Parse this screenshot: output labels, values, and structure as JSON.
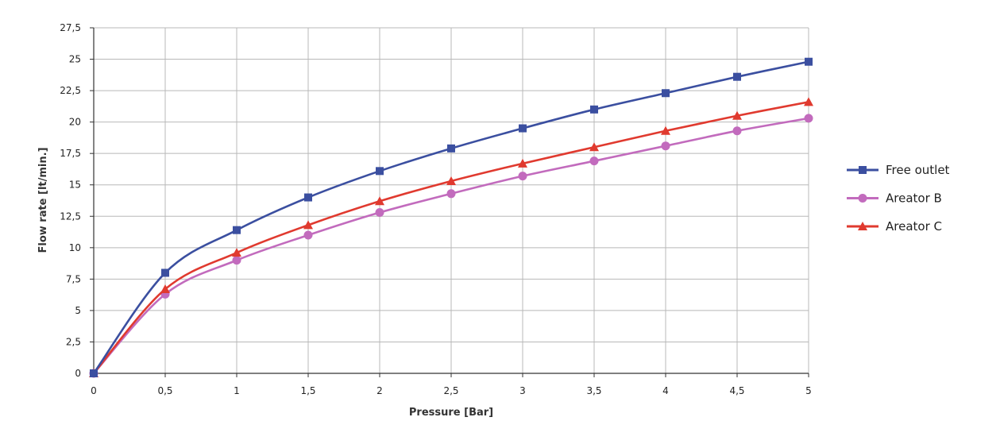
{
  "chart_data": {
    "type": "line",
    "xlabel": "Pressure [Bar]",
    "ylabel": "Flow rate [lt/min.]",
    "xlim": [
      0,
      5
    ],
    "ylim": [
      0,
      27.5
    ],
    "x_ticks": [
      "0",
      "0,5",
      "1",
      "1,5",
      "2",
      "2,5",
      "3",
      "3,5",
      "4",
      "4,5",
      "5"
    ],
    "y_ticks": [
      "0",
      "2,5",
      "5",
      "7,5",
      "10",
      "12,5",
      "15",
      "17,5",
      "20",
      "22,5",
      "25",
      "27,5"
    ],
    "x": [
      0,
      0.5,
      1,
      1.5,
      2,
      2.5,
      3,
      3.5,
      4,
      4.5,
      5
    ],
    "grid": true,
    "legend_position": "right",
    "series": [
      {
        "name": "Free outlet",
        "color": "#3b4fa0",
        "marker": "square",
        "values": [
          0,
          8.0,
          11.4,
          14.0,
          16.1,
          17.9,
          19.5,
          21.0,
          22.3,
          23.6,
          24.8
        ]
      },
      {
        "name": "Areator B",
        "color": "#c26bbd",
        "marker": "circle",
        "values": [
          0,
          6.3,
          9.0,
          11.0,
          12.8,
          14.3,
          15.7,
          16.9,
          18.1,
          19.3,
          20.3
        ]
      },
      {
        "name": "Areator C",
        "color": "#e03a2f",
        "marker": "triangle",
        "values": [
          0,
          6.7,
          9.6,
          11.8,
          13.7,
          15.3,
          16.7,
          18.0,
          19.3,
          20.5,
          21.6
        ]
      }
    ]
  }
}
